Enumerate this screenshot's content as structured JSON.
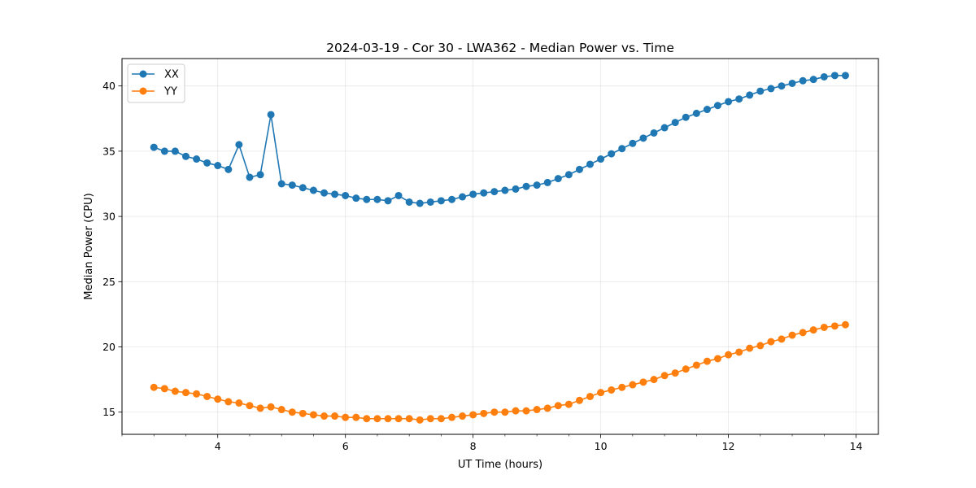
{
  "chart_data": {
    "type": "line",
    "title": "2024-03-19 - Cor 30 - LWA362 - Median Power vs. Time",
    "xlabel": "UT Time (hours)",
    "ylabel": "Median Power (CPU)",
    "xlim": [
      2.5,
      14.35
    ],
    "ylim": [
      13.3,
      42.1
    ],
    "xticks": [
      4,
      6,
      8,
      10,
      12,
      14
    ],
    "xtick_labels": [
      "4",
      "6",
      "8",
      "10",
      "12",
      "14"
    ],
    "xminor_step": 0.5,
    "yticks": [
      15,
      20,
      25,
      30,
      35,
      40
    ],
    "ytick_labels": [
      "15",
      "20",
      "25",
      "30",
      "35",
      "40"
    ],
    "grid": true,
    "legend_position": "top-left",
    "x": [
      3.0,
      3.167,
      3.333,
      3.5,
      3.667,
      3.833,
      4.0,
      4.167,
      4.333,
      4.5,
      4.667,
      4.833,
      5.0,
      5.167,
      5.333,
      5.5,
      5.667,
      5.833,
      6.0,
      6.167,
      6.333,
      6.5,
      6.667,
      6.833,
      7.0,
      7.167,
      7.333,
      7.5,
      7.667,
      7.833,
      8.0,
      8.167,
      8.333,
      8.5,
      8.667,
      8.833,
      9.0,
      9.167,
      9.333,
      9.5,
      9.667,
      9.833,
      10.0,
      10.167,
      10.333,
      10.5,
      10.667,
      10.833,
      11.0,
      11.167,
      11.333,
      11.5,
      11.667,
      11.833,
      12.0,
      12.167,
      12.333,
      12.5,
      12.667,
      12.833,
      13.0,
      13.167,
      13.333,
      13.5,
      13.667,
      13.833
    ],
    "series": [
      {
        "name": "XX",
        "color": "#1f77b4",
        "values": [
          35.3,
          35.0,
          35.0,
          34.6,
          34.4,
          34.1,
          33.9,
          33.6,
          35.5,
          33.0,
          33.2,
          37.8,
          32.5,
          32.4,
          32.2,
          32.0,
          31.8,
          31.7,
          31.6,
          31.4,
          31.3,
          31.3,
          31.2,
          31.6,
          31.1,
          31.0,
          31.1,
          31.2,
          31.3,
          31.5,
          31.7,
          31.8,
          31.9,
          32.0,
          32.1,
          32.3,
          32.4,
          32.6,
          32.9,
          33.2,
          33.6,
          34.0,
          34.4,
          34.8,
          35.2,
          35.6,
          36.0,
          36.4,
          36.8,
          37.2,
          37.6,
          37.9,
          38.2,
          38.5,
          38.8,
          39.0,
          39.3,
          39.6,
          39.8,
          40.0,
          40.2,
          40.4,
          40.5,
          40.7,
          40.8,
          40.8
        ]
      },
      {
        "name": "YY",
        "color": "#ff7f0e",
        "values": [
          16.9,
          16.8,
          16.6,
          16.5,
          16.4,
          16.2,
          16.0,
          15.8,
          15.7,
          15.5,
          15.3,
          15.4,
          15.2,
          15.0,
          14.9,
          14.8,
          14.7,
          14.7,
          14.6,
          14.6,
          14.5,
          14.5,
          14.5,
          14.5,
          14.5,
          14.4,
          14.5,
          14.5,
          14.6,
          14.7,
          14.8,
          14.9,
          15.0,
          15.0,
          15.1,
          15.1,
          15.2,
          15.3,
          15.5,
          15.6,
          15.9,
          16.2,
          16.5,
          16.7,
          16.9,
          17.1,
          17.3,
          17.5,
          17.8,
          18.0,
          18.3,
          18.6,
          18.9,
          19.1,
          19.4,
          19.6,
          19.9,
          20.1,
          20.4,
          20.6,
          20.9,
          21.1,
          21.3,
          21.5,
          21.6,
          21.7
        ]
      }
    ]
  }
}
